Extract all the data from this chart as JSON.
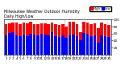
{
  "title": "Milwaukee Weather Outdoor Humidity",
  "subtitle": "Daily High/Low",
  "high_color": "#ff0000",
  "low_color": "#0000ff",
  "background_color": "#ffffff",
  "plot_bg_color": "#ffffff",
  "days": [
    "1",
    "2",
    "3",
    "4",
    "5",
    "6",
    "7",
    "8",
    "9",
    "10",
    "11",
    "12",
    "13",
    "14",
    "15",
    "16",
    "17",
    "18",
    "19",
    "20",
    "21",
    "22",
    "23",
    "24",
    "25",
    "26",
    "27",
    "28",
    "29",
    "30"
  ],
  "highs": [
    88,
    90,
    91,
    92,
    87,
    91,
    89,
    95,
    88,
    87,
    90,
    89,
    88,
    91,
    87,
    85,
    88,
    80,
    95,
    95,
    88,
    65,
    93,
    92,
    88,
    90,
    75,
    91,
    88,
    85
  ],
  "lows": [
    55,
    62,
    63,
    55,
    52,
    58,
    52,
    60,
    57,
    55,
    60,
    58,
    55,
    63,
    53,
    50,
    55,
    48,
    58,
    58,
    52,
    42,
    62,
    60,
    52,
    55,
    35,
    55,
    52,
    50
  ],
  "ylim": [
    0,
    100
  ],
  "yticks": [
    20,
    40,
    60,
    80,
    100
  ],
  "bar_width": 0.8,
  "dashed_vline": 16.5,
  "legend_high": "High",
  "legend_low": "Low",
  "title_fontsize": 3.5,
  "tick_fontsize": 3.0
}
